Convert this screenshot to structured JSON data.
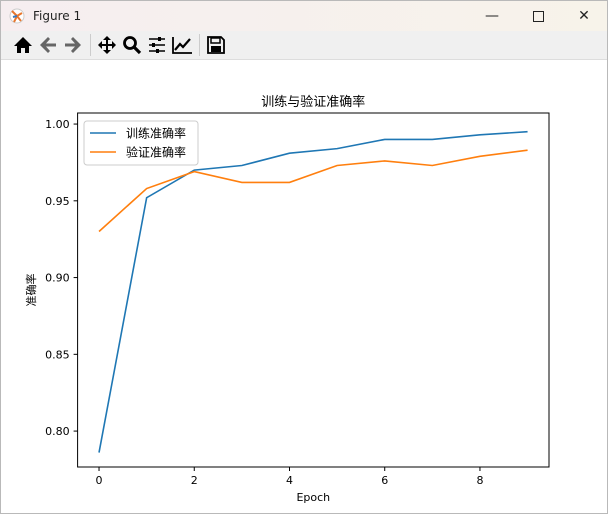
{
  "window": {
    "title": "Figure 1",
    "minimize_icon": "minimize-icon",
    "maximize_icon": "maximize-icon",
    "close_icon": "close-icon"
  },
  "toolbar": {
    "items": [
      "home-icon",
      "back-arrow-icon",
      "forward-arrow-icon",
      "pan-move-icon",
      "zoom-magnifier-icon",
      "configure-subplots-icon",
      "edit-axis-icon",
      "save-floppy-icon"
    ]
  },
  "chart_data": {
    "type": "line",
    "title": "训练与验证准确率",
    "xlabel": "Epoch",
    "ylabel": "准确率",
    "x": [
      0,
      1,
      2,
      3,
      4,
      5,
      6,
      7,
      8,
      9
    ],
    "xlim": [
      -0.45,
      9.45
    ],
    "ylim": [
      0.7766,
      1.0072
    ],
    "xticks": [
      0,
      2,
      4,
      6,
      8
    ],
    "yticks": [
      "0.80",
      "0.85",
      "0.90",
      "0.95",
      "1.00"
    ],
    "grid": false,
    "legend_placement": "upper-left",
    "series": [
      {
        "name": "训练准确率",
        "color": "#1f77b4",
        "values": [
          0.786,
          0.952,
          0.97,
          0.973,
          0.981,
          0.984,
          0.99,
          0.99,
          0.993,
          0.995
        ]
      },
      {
        "name": "验证准确率",
        "color": "#ff7f0e",
        "values": [
          0.93,
          0.958,
          0.969,
          0.962,
          0.962,
          0.973,
          0.976,
          0.973,
          0.979,
          0.983
        ]
      }
    ]
  }
}
